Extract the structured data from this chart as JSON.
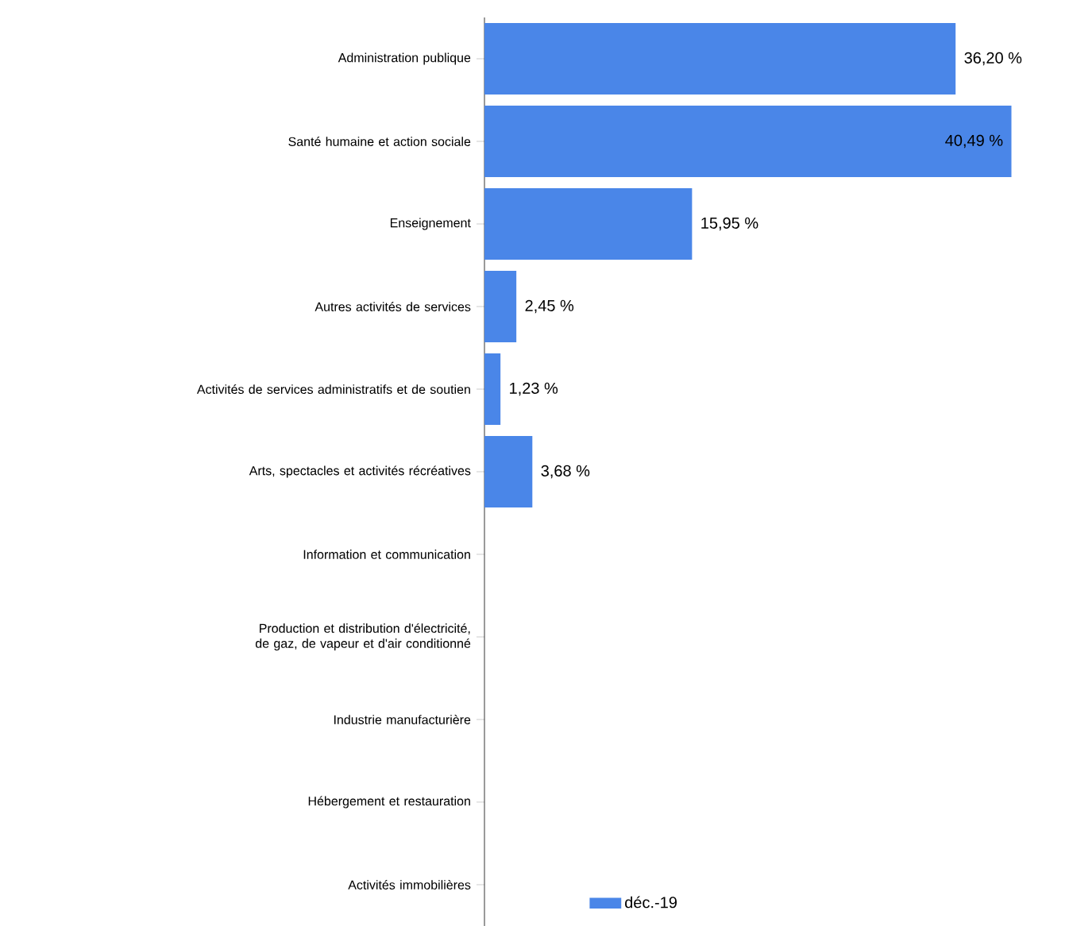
{
  "chart_data": {
    "type": "bar",
    "orientation": "horizontal",
    "tick_labels": "y",
    "legend": "bottom",
    "categories": [
      "Administration publique",
      "Santé humaine et action sociale",
      "Enseignement",
      "Autres activités de services",
      "Activités de services administratifs et de soutien",
      "Arts, spectacles et activités récréatives",
      "Information et communication",
      "Production et distribution d'électricité, de gaz, de vapeur et d'air conditionné",
      "Industrie manufacturière",
      "Hébergement et restauration",
      "Activités immobilières"
    ],
    "series": [
      {
        "name": "déc.-19",
        "color": "#4a86e8",
        "values": [
          36.2,
          40.49,
          15.95,
          2.45,
          1.23,
          3.68,
          0,
          0,
          0,
          0,
          0
        ],
        "value_labels": [
          "36,20 %",
          "40,49 %",
          "15,95 %",
          "2,45 %",
          "1,23 %",
          "3,68 %",
          null,
          null,
          null,
          null,
          null
        ]
      }
    ]
  }
}
